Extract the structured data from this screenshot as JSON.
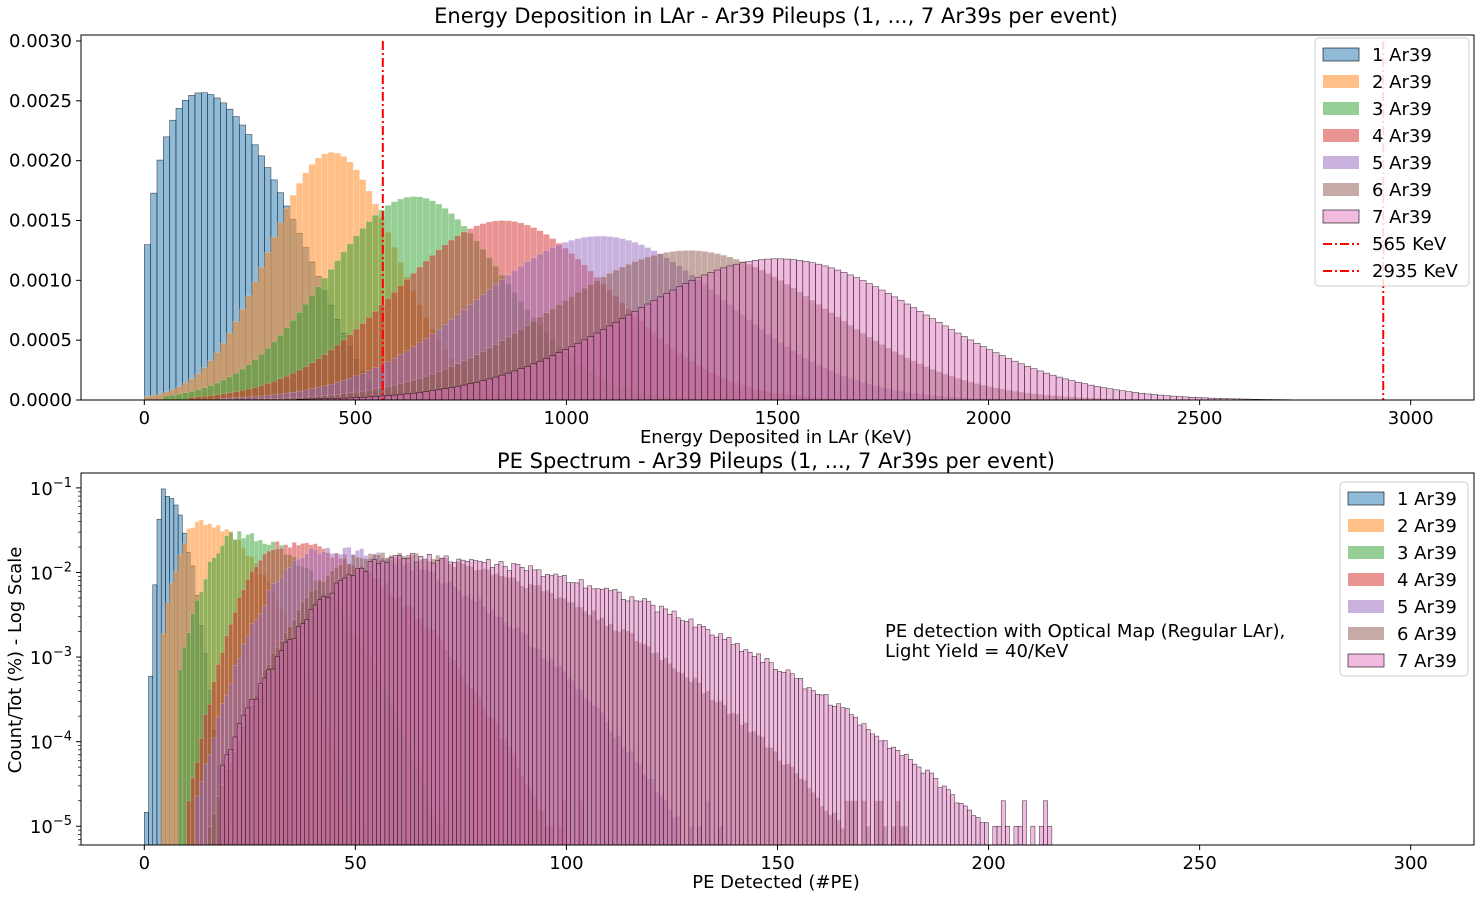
{
  "colors": {
    "1 Ar39": "#1f77b4",
    "2 Ar39": "#ff7f0e",
    "3 Ar39": "#2ca02c",
    "4 Ar39": "#d62728",
    "5 Ar39": "#9467bd",
    "6 Ar39": "#8c564b",
    "7 Ar39": "#e377c2",
    "vline": "#ff0000"
  },
  "chart_data": [
    {
      "type": "bar",
      "histogram": true,
      "title": "Energy Deposition in LAr - Ar39 Pileups (1, ..., 7 Ar39s per event)",
      "xlabel": "Energy Deposited in LAr (KeV)",
      "ylabel": "",
      "xlim": [
        -150,
        3150
      ],
      "ylim": [
        0,
        0.00305
      ],
      "xticks": [
        0,
        500,
        1000,
        1500,
        2000,
        2500,
        3000
      ],
      "xtick_labels": [
        "0",
        "500",
        "1000",
        "1500",
        "2000",
        "2500",
        "3000"
      ],
      "yticks": [
        0,
        0.0005,
        0.001,
        0.0015,
        0.002,
        0.0025,
        0.003
      ],
      "ytick_labels": [
        "0.0000",
        "0.0005",
        "0.0010",
        "0.0015",
        "0.0020",
        "0.0025",
        "0.0030"
      ],
      "bin_width": 15,
      "legend": "top-right",
      "series": [
        {
          "name": "1 Ar39",
          "shape": "beta1",
          "end": 565,
          "peak_x": 165,
          "peak": 0.00254
        },
        {
          "name": "2 Ar39",
          "shape": "gauss",
          "mean": 445,
          "sigma": 150,
          "peak": 0.00207,
          "lo": 0,
          "hi": 1130
        },
        {
          "name": "3 Ar39",
          "shape": "gauss",
          "mean": 640,
          "sigma": 210,
          "peak": 0.0017,
          "lo": 40,
          "hi": 1700
        },
        {
          "name": "4 Ar39",
          "shape": "gauss",
          "mean": 850,
          "sigma": 255,
          "peak": 0.0015,
          "lo": 100,
          "hi": 2260
        },
        {
          "name": "5 Ar39",
          "shape": "gauss",
          "mean": 1080,
          "sigma": 295,
          "peak": 0.00137,
          "lo": 180,
          "hi": 2540
        },
        {
          "name": "6 Ar39",
          "shape": "gauss",
          "mean": 1290,
          "sigma": 325,
          "peak": 0.00125,
          "lo": 270,
          "hi": 2690
        },
        {
          "name": "7 Ar39",
          "shape": "gauss",
          "mean": 1500,
          "sigma": 350,
          "peak": 0.00118,
          "lo": 360,
          "hi": 2820
        }
      ],
      "vlines": [
        {
          "name": "565 KeV",
          "x": 565,
          "y_top": 0.003
        },
        {
          "name": "2935 KeV",
          "x": 2935,
          "y_top": 0.003
        }
      ]
    },
    {
      "type": "bar",
      "histogram": true,
      "title": "PE Spectrum - Ar39 Pileups (1, ..., 7 Ar39s per event)",
      "xlabel": "PE Detected (#PE)",
      "ylabel": "Count/Tot (%) - Log Scale",
      "yscale": "log",
      "xlim": [
        -15,
        315
      ],
      "ylim": [
        6e-06,
        0.15
      ],
      "xticks": [
        0,
        50,
        100,
        150,
        200,
        250,
        300
      ],
      "xtick_labels": [
        "0",
        "50",
        "100",
        "150",
        "200",
        "250",
        "300"
      ],
      "yticks": [
        1e-05,
        0.0001,
        0.001,
        0.01,
        0.1
      ],
      "ytick_labels": [
        "10−5",
        "10−4",
        "10−3",
        "10−2",
        "10−1"
      ],
      "bin_width": 1,
      "legend": "top-right",
      "annotation": [
        "PE detection with Optical Map (Regular LAr),",
        "Light Yield = 40/KeV"
      ],
      "series": [
        {
          "name": "1 Ar39",
          "mean": 4.7,
          "sigma_l": 1.0,
          "sigma_r": 3.3,
          "peak": 0.09,
          "lo": 0,
          "hi": 22
        },
        {
          "name": "2 Ar39",
          "mean": 13,
          "sigma_l": 3.5,
          "sigma_r": 9,
          "peak": 0.04,
          "lo": 4,
          "hi": 55
        },
        {
          "name": "3 Ar39",
          "mean": 22,
          "sigma_l": 5,
          "sigma_r": 12,
          "peak": 0.028,
          "lo": 8,
          "hi": 80
        },
        {
          "name": "4 Ar39",
          "mean": 33,
          "sigma_l": 6,
          "sigma_r": 16,
          "peak": 0.022,
          "lo": 10,
          "hi": 110
        },
        {
          "name": "5 Ar39",
          "mean": 42,
          "sigma_l": 8,
          "sigma_r": 22,
          "peak": 0.019,
          "lo": 12,
          "hi": 150
        },
        {
          "name": "6 Ar39",
          "mean": 54,
          "sigma_l": 10,
          "sigma_r": 29,
          "peak": 0.0165,
          "lo": 15,
          "hi": 200
        },
        {
          "name": "7 Ar39",
          "mean": 62,
          "sigma_l": 13,
          "sigma_r": 36,
          "peak": 0.015,
          "lo": 18,
          "hi": 270
        }
      ]
    }
  ]
}
